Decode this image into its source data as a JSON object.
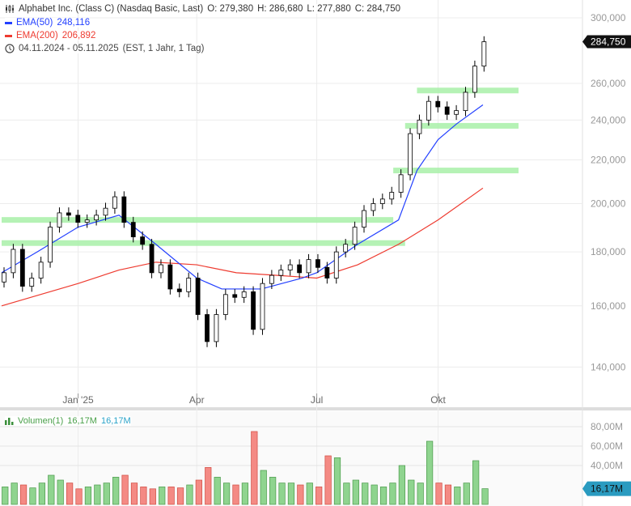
{
  "header": {
    "title": "Alphabet Inc. (Class C) (Nasdaq Basic, Last)",
    "ohlc": {
      "open": "O: 279,380",
      "high": "H: 286,680",
      "low": "L: 277,880",
      "close": "C: 284,750"
    },
    "ema50": {
      "label": "EMA(50)",
      "value": "248,116",
      "color": "#2340ff"
    },
    "ema200": {
      "label": "EMA(200)",
      "value": "206,892",
      "color": "#ee3b30"
    },
    "range": "04.11.2024 - 05.11.2025",
    "range_note": "(EST, 1 Jahr, 1 Tag)",
    "icons": [
      "candlestick-icon",
      "clock-icon"
    ]
  },
  "volume_legend": {
    "label": "Volumen(1)",
    "value1": "16,17M",
    "value2": "16,17M",
    "icon": "bar-chart-icon"
  },
  "chart_data": {
    "type": "candlestick",
    "price_scale": "log",
    "ylim": [
      130000,
      310000
    ],
    "yticks": [
      "300,000",
      "260,000",
      "240,000",
      "220,000",
      "200,000",
      "180,000",
      "160,000",
      "140,000"
    ],
    "ytick_values": [
      300000,
      260000,
      240000,
      220000,
      200000,
      180000,
      160000,
      140000
    ],
    "xlim": [
      "2024-11-04",
      "2025-12-01"
    ],
    "xticks": [
      {
        "label": "Jan '25",
        "date": "2025-01-01"
      },
      {
        "label": "Apr",
        "date": "2025-04-01"
      },
      {
        "label": "Jul",
        "date": "2025-07-01"
      },
      {
        "label": "Okt",
        "date": "2025-10-01"
      }
    ],
    "last_price_label": "284,750",
    "grid": true,
    "colors": {
      "up": "#ffffff",
      "down": "#000000",
      "ema50": "#2340ff",
      "ema200": "#ee3b30",
      "levels": "#a8f0a8",
      "vol_up": "#8fd48f",
      "vol_down": "#f48a84",
      "last_vol": "#2a9bc0"
    },
    "series_start": "2024-11-04",
    "series_step_days": 7,
    "close": [
      172000,
      181000,
      167000,
      170000,
      176000,
      190000,
      196000,
      195000,
      192000,
      193000,
      195000,
      198000,
      203000,
      192000,
      186000,
      183000,
      172000,
      175000,
      166000,
      165000,
      170000,
      157000,
      148000,
      157000,
      164000,
      163000,
      165000,
      152000,
      168000,
      171000,
      173000,
      175000,
      172000,
      177000,
      174000,
      170000,
      180000,
      183000,
      190000,
      197000,
      200000,
      202000,
      205000,
      213000,
      233000,
      240000,
      250000,
      247000,
      243000,
      245000,
      255000,
      270000,
      284750
    ],
    "ema50": [
      [
        "2024-11-04",
        172000
      ],
      [
        "2024-12-01",
        180000
      ],
      [
        "2025-01-01",
        190000
      ],
      [
        "2025-02-01",
        195000
      ],
      [
        "2025-03-01",
        183000
      ],
      [
        "2025-04-01",
        170000
      ],
      [
        "2025-04-20",
        166000
      ],
      [
        "2025-05-20",
        166000
      ],
      [
        "2025-06-20",
        170000
      ],
      [
        "2025-07-01",
        172000
      ],
      [
        "2025-08-01",
        183000
      ],
      [
        "2025-09-01",
        193000
      ],
      [
        "2025-09-15",
        215000
      ],
      [
        "2025-10-01",
        230000
      ],
      [
        "2025-10-15",
        238000
      ],
      [
        "2025-11-04",
        248116
      ]
    ],
    "ema200": [
      [
        "2024-11-04",
        160000
      ],
      [
        "2025-01-01",
        168000
      ],
      [
        "2025-02-01",
        173000
      ],
      [
        "2025-03-01",
        176000
      ],
      [
        "2025-04-01",
        175000
      ],
      [
        "2025-05-01",
        172000
      ],
      [
        "2025-06-01",
        171000
      ],
      [
        "2025-07-01",
        170000
      ],
      [
        "2025-08-01",
        175000
      ],
      [
        "2025-09-01",
        183000
      ],
      [
        "2025-10-01",
        193000
      ],
      [
        "2025-11-04",
        206892
      ]
    ],
    "levels": [
      {
        "price": 193000,
        "from": "2024-11-04",
        "to": "2025-08-28"
      },
      {
        "price": 183500,
        "from": "2024-11-04",
        "to": "2025-09-06"
      },
      {
        "price": 256000,
        "from": "2025-09-15",
        "to": "2025-12-01"
      },
      {
        "price": 237000,
        "from": "2025-09-06",
        "to": "2025-12-01"
      },
      {
        "price": 215000,
        "from": "2025-08-28",
        "to": "2025-12-01"
      }
    ],
    "volume": {
      "yticks": [
        "80,00M",
        "60,00M",
        "40,00M"
      ],
      "ytick_values": [
        80,
        60,
        40
      ],
      "ylim": [
        0,
        100
      ],
      "unit": "M",
      "values": [
        18,
        22,
        20,
        17,
        22,
        30,
        25,
        22,
        16,
        18,
        20,
        22,
        28,
        30,
        22,
        18,
        16,
        18,
        18,
        17,
        20,
        25,
        38,
        28,
        22,
        20,
        22,
        75,
        35,
        28,
        22,
        22,
        20,
        22,
        18,
        50,
        48,
        22,
        25,
        22,
        20,
        18,
        22,
        40,
        25,
        22,
        65,
        22,
        20,
        18,
        22,
        45,
        16.17
      ],
      "last_label": "16,17M"
    }
  }
}
